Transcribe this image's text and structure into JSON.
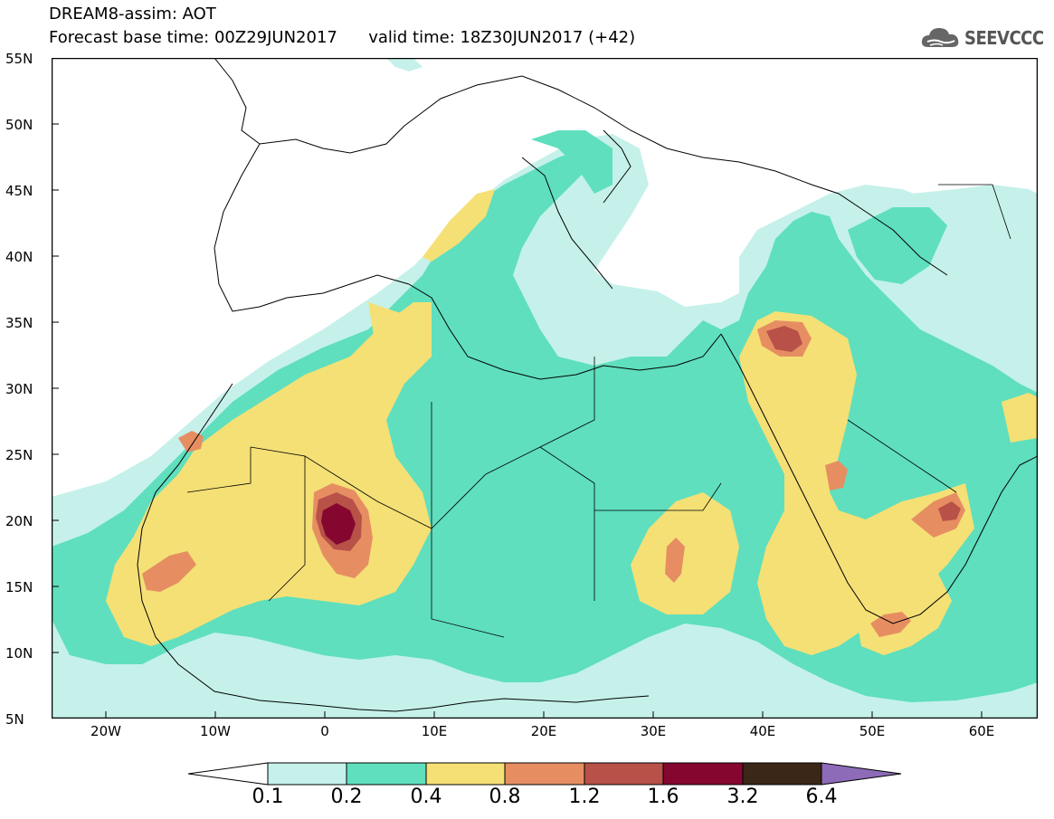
{
  "header": {
    "title_line1": "DREAM8-assim: AOT",
    "title_line2": "Forecast base time: 00Z29JUN2017      valid time: 18Z30JUN2017 (+42)",
    "brand": "SEEVCCC"
  },
  "map": {
    "lat_labels": [
      "55N",
      "50N",
      "45N",
      "40N",
      "35N",
      "30N",
      "25N",
      "20N",
      "15N",
      "10N",
      "5N"
    ],
    "lon_labels": [
      "20W",
      "10W",
      "0",
      "10E",
      "20E",
      "30E",
      "40E",
      "50E",
      "60E"
    ],
    "lon_range": [
      -25,
      65
    ],
    "lat_range": [
      5,
      55
    ],
    "background": "#ffffff",
    "coastline_color": "#000000"
  },
  "legend": {
    "levels": [
      "0.1",
      "0.2",
      "0.4",
      "0.8",
      "1.2",
      "1.6",
      "3.2",
      "6.4"
    ],
    "colors": {
      "under": "#ffffff",
      "c0": "#c5f1ea",
      "c1": "#5fdfbd",
      "c2": "#f5e076",
      "c3": "#e68e62",
      "c4": "#b85148",
      "c5": "#85072f",
      "c6": "#3a2717",
      "over": "#8d6bb8"
    }
  }
}
